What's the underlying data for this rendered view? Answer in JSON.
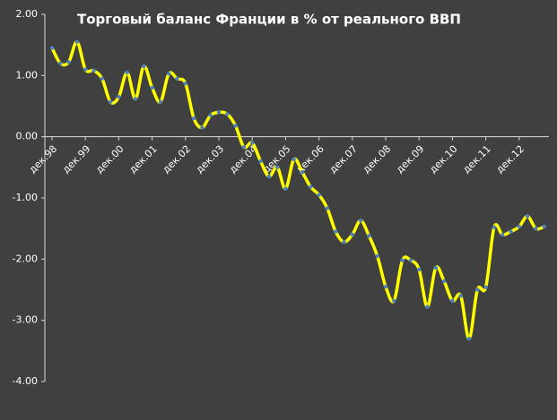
{
  "chart_data": {
    "type": "line",
    "title": "Торговый баланс Франции в % от реального ВВП",
    "categories": [
      "дек.98",
      null,
      null,
      null,
      "дек.99",
      null,
      null,
      null,
      "дек.00",
      null,
      null,
      null,
      "дек.01",
      null,
      null,
      null,
      "дек.02",
      null,
      null,
      null,
      "дек.03",
      null,
      null,
      null,
      "дек.04",
      null,
      null,
      null,
      "дек.05",
      null,
      null,
      null,
      "дек.06",
      null,
      null,
      null,
      "дек.07",
      null,
      null,
      null,
      "дек.08",
      null,
      null,
      null,
      "дек.09",
      null,
      null,
      null,
      "дек.10",
      null,
      null,
      null,
      "дек.11",
      null,
      null,
      null,
      "дек.12",
      null,
      null,
      null
    ],
    "values": [
      1.45,
      1.2,
      1.22,
      1.55,
      1.1,
      1.08,
      0.95,
      0.57,
      0.65,
      1.05,
      0.62,
      1.15,
      0.8,
      0.57,
      1.03,
      0.95,
      0.87,
      0.3,
      0.15,
      0.35,
      0.4,
      0.37,
      0.18,
      -0.17,
      -0.1,
      -0.4,
      -0.65,
      -0.5,
      -0.85,
      -0.37,
      -0.58,
      -0.82,
      -0.95,
      -1.17,
      -1.55,
      -1.72,
      -1.6,
      -1.37,
      -1.62,
      -1.95,
      -2.45,
      -2.68,
      -2.02,
      -2.02,
      -2.17,
      -2.78,
      -2.14,
      -2.36,
      -2.68,
      -2.6,
      -3.3,
      -2.5,
      -2.46,
      -1.48,
      -1.6,
      -1.55,
      -1.47,
      -1.3,
      -1.5,
      -1.47
    ],
    "color": "#ffff00",
    "marker_color": "#4f81bd",
    "ylim": [
      -4,
      2
    ],
    "yticks": [
      {
        "value": -4,
        "label": "-4.00"
      },
      {
        "value": -3,
        "label": "-3.00"
      },
      {
        "value": -2,
        "label": "-2.00"
      },
      {
        "value": -1,
        "label": "-1.00"
      },
      {
        "value": 0,
        "label": "0.00"
      },
      {
        "value": 1,
        "label": "1.00"
      },
      {
        "value": 2,
        "label": "2.00"
      }
    ],
    "grid": false
  }
}
